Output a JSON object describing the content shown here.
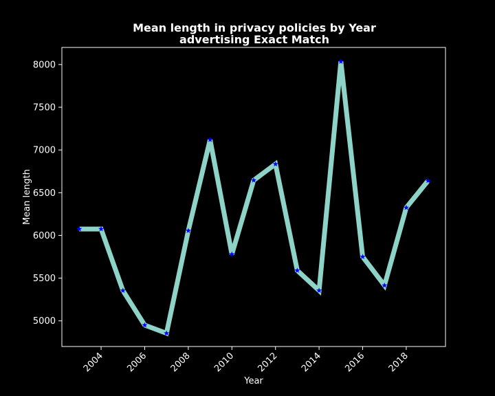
{
  "chart_data": {
    "type": "line",
    "title_line1": "Mean length in privacy policies by Year",
    "title_line2": "advertising Exact Match",
    "xlabel": "Year",
    "ylabel": "Mean length",
    "x": [
      2003,
      2004,
      2005,
      2006,
      2007,
      2008,
      2009,
      2010,
      2011,
      2012,
      2013,
      2014,
      2015,
      2016,
      2017,
      2018,
      2019
    ],
    "y": [
      6075,
      6075,
      5355,
      4950,
      4855,
      6055,
      7120,
      5780,
      6645,
      6835,
      5590,
      5355,
      8035,
      5750,
      5415,
      6325,
      6640
    ],
    "xlim": [
      2002.2,
      2019.8
    ],
    "ylim": [
      4700,
      8200
    ],
    "xticks": [
      2004,
      2006,
      2008,
      2010,
      2012,
      2014,
      2016,
      2018
    ],
    "yticks": [
      5000,
      5500,
      6000,
      6500,
      7000,
      7500,
      8000
    ],
    "grid": false,
    "colors": {
      "background": "#000000",
      "line": "#8dd3c7",
      "marker": "#0000ff",
      "text": "#ffffff",
      "axes": "#ffffff"
    }
  }
}
